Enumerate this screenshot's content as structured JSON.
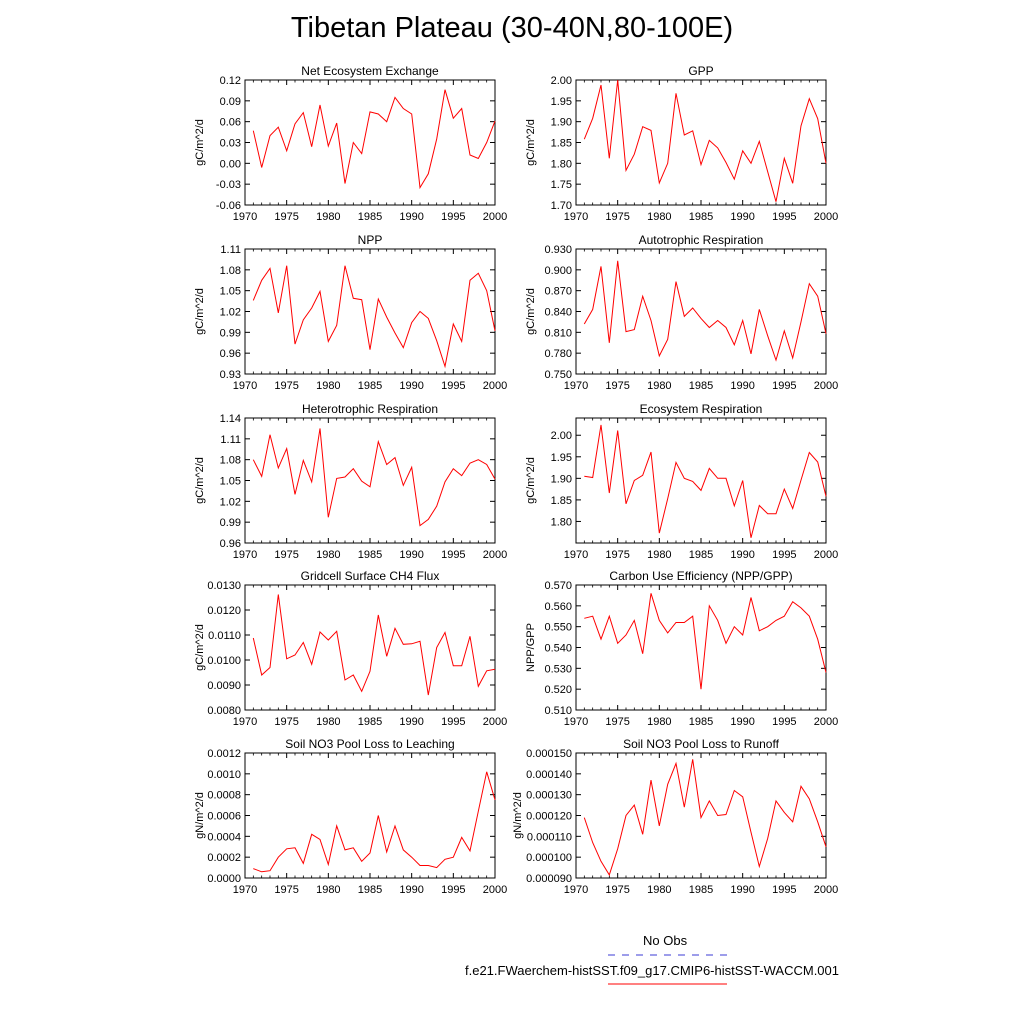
{
  "page_title": "Tibetan Plateau (30-40N,80-100E)",
  "legend": {
    "entries": [
      {
        "label": "No Obs",
        "color": "#3b3bd6",
        "style": "dashed"
      },
      {
        "label": "f.e21.FWaerchem-histSST.f09_g17.CMIP6-histSST-WACCM.001",
        "color": "#ff0000",
        "style": "solid"
      }
    ]
  },
  "chart_data": [
    {
      "type": "line",
      "title": "Net Ecosystem Exchange",
      "xlabel": "",
      "ylabel": "gC/m^2/d",
      "xlim": [
        1970,
        2000
      ],
      "ylim": [
        -0.06,
        0.12
      ],
      "xticks": [
        1970,
        1975,
        1980,
        1985,
        1990,
        1995,
        2000
      ],
      "xtick_labels": [
        "1970",
        "1975",
        "1980",
        "1985",
        "1990",
        "1995",
        "2000"
      ],
      "yticks": [
        -0.06,
        -0.03,
        0,
        0.03,
        0.06,
        0.09,
        0.12
      ],
      "ytick_labels": [
        "-0.06",
        "-0.03",
        "0.00",
        "0.03",
        "0.06",
        "0.09",
        "0.12"
      ],
      "x": [
        1971,
        1972,
        1973,
        1974,
        1975,
        1976,
        1977,
        1978,
        1979,
        1980,
        1981,
        1982,
        1983,
        1984,
        1985,
        1986,
        1987,
        1988,
        1989,
        1990,
        1991,
        1992,
        1993,
        1994,
        1995,
        1996,
        1997,
        1998,
        1999,
        2000
      ],
      "series": [
        {
          "color": "#ff0000",
          "values": [
            0.047,
            -0.006,
            0.04,
            0.052,
            0.018,
            0.057,
            0.073,
            0.024,
            0.084,
            0.025,
            0.058,
            -0.029,
            0.03,
            0.014,
            0.074,
            0.071,
            0.06,
            0.095,
            0.079,
            0.071,
            -0.035,
            -0.015,
            0.035,
            0.106,
            0.065,
            0.079,
            0.012,
            0.007,
            0.03,
            0.061
          ]
        }
      ]
    },
    {
      "type": "line",
      "title": "GPP",
      "xlabel": "",
      "ylabel": "gC/m^2/d",
      "xlim": [
        1970,
        2000
      ],
      "ylim": [
        1.7,
        2.0
      ],
      "xticks": [
        1970,
        1975,
        1980,
        1985,
        1990,
        1995,
        2000
      ],
      "xtick_labels": [
        "1970",
        "1975",
        "1980",
        "1985",
        "1990",
        "1995",
        "2000"
      ],
      "yticks": [
        1.7,
        1.75,
        1.8,
        1.85,
        1.9,
        1.95,
        2.0
      ],
      "ytick_labels": [
        "1.70",
        "1.75",
        "1.80",
        "1.85",
        "1.90",
        "1.95",
        "2.00"
      ],
      "x": [
        1971,
        1972,
        1973,
        1974,
        1975,
        1976,
        1977,
        1978,
        1979,
        1980,
        1981,
        1982,
        1983,
        1984,
        1985,
        1986,
        1987,
        1988,
        1989,
        1990,
        1991,
        1992,
        1993,
        1994,
        1995,
        1996,
        1997,
        1998,
        1999,
        2000
      ],
      "series": [
        {
          "color": "#ff0000",
          "values": [
            1.858,
            1.908,
            1.988,
            1.812,
            2.0,
            1.783,
            1.822,
            1.888,
            1.879,
            1.753,
            1.8,
            1.968,
            1.868,
            1.878,
            1.797,
            1.855,
            1.837,
            1.802,
            1.762,
            1.83,
            1.8,
            1.853,
            1.78,
            1.708,
            1.812,
            1.752,
            1.89,
            1.955,
            1.907,
            1.8
          ]
        }
      ]
    },
    {
      "type": "line",
      "title": "NPP",
      "xlabel": "",
      "ylabel": "gC/m^2/d",
      "xlim": [
        1970,
        2000
      ],
      "ylim": [
        0.93,
        1.11
      ],
      "xticks": [
        1970,
        1975,
        1980,
        1985,
        1990,
        1995,
        2000
      ],
      "xtick_labels": [
        "1970",
        "1975",
        "1980",
        "1985",
        "1990",
        "1995",
        "2000"
      ],
      "yticks": [
        0.93,
        0.96,
        0.99,
        1.02,
        1.05,
        1.08,
        1.11
      ],
      "ytick_labels": [
        "0.93",
        "0.96",
        "0.99",
        "1.02",
        "1.05",
        "1.08",
        "1.11"
      ],
      "x": [
        1971,
        1972,
        1973,
        1974,
        1975,
        1976,
        1977,
        1978,
        1979,
        1980,
        1981,
        1982,
        1983,
        1984,
        1985,
        1986,
        1987,
        1988,
        1989,
        1990,
        1991,
        1992,
        1993,
        1994,
        1995,
        1996,
        1997,
        1998,
        1999,
        2000
      ],
      "series": [
        {
          "color": "#ff0000",
          "values": [
            1.036,
            1.065,
            1.082,
            1.018,
            1.086,
            0.973,
            1.008,
            1.025,
            1.049,
            0.977,
            1.0,
            1.086,
            1.039,
            1.037,
            0.965,
            1.038,
            1.012,
            0.989,
            0.968,
            1.004,
            1.02,
            1.01,
            0.978,
            0.941,
            1.002,
            0.977,
            1.065,
            1.075,
            1.05,
            0.992
          ]
        }
      ]
    },
    {
      "type": "line",
      "title": "Autotrophic Respiration",
      "xlabel": "",
      "ylabel": "gC/m^2/d",
      "xlim": [
        1970,
        2000
      ],
      "ylim": [
        0.75,
        0.93
      ],
      "xticks": [
        1970,
        1975,
        1980,
        1985,
        1990,
        1995,
        2000
      ],
      "xtick_labels": [
        "1970",
        "1975",
        "1980",
        "1985",
        "1990",
        "1995",
        "2000"
      ],
      "yticks": [
        0.75,
        0.78,
        0.81,
        0.84,
        0.87,
        0.9,
        0.93
      ],
      "ytick_labels": [
        "0.750",
        "0.780",
        "0.810",
        "0.840",
        "0.870",
        "0.900",
        "0.930"
      ],
      "x": [
        1971,
        1972,
        1973,
        1974,
        1975,
        1976,
        1977,
        1978,
        1979,
        1980,
        1981,
        1982,
        1983,
        1984,
        1985,
        1986,
        1987,
        1988,
        1989,
        1990,
        1991,
        1992,
        1993,
        1994,
        1995,
        1996,
        1997,
        1998,
        1999,
        2000
      ],
      "series": [
        {
          "color": "#ff0000",
          "values": [
            0.822,
            0.843,
            0.905,
            0.795,
            0.913,
            0.811,
            0.814,
            0.862,
            0.827,
            0.776,
            0.8,
            0.883,
            0.833,
            0.845,
            0.83,
            0.817,
            0.827,
            0.817,
            0.792,
            0.827,
            0.779,
            0.843,
            0.805,
            0.77,
            0.812,
            0.773,
            0.825,
            0.88,
            0.862,
            0.808
          ]
        }
      ]
    },
    {
      "type": "line",
      "title": "Heterotrophic Respiration",
      "xlabel": "",
      "ylabel": "gC/m^2/d",
      "xlim": [
        1970,
        2000
      ],
      "ylim": [
        0.96,
        1.14
      ],
      "xticks": [
        1970,
        1975,
        1980,
        1985,
        1990,
        1995,
        2000
      ],
      "xtick_labels": [
        "1970",
        "1975",
        "1980",
        "1985",
        "1990",
        "1995",
        "2000"
      ],
      "yticks": [
        0.96,
        0.99,
        1.02,
        1.05,
        1.08,
        1.11,
        1.14
      ],
      "ytick_labels": [
        "0.96",
        "0.99",
        "1.02",
        "1.05",
        "1.08",
        "1.11",
        "1.14"
      ],
      "x": [
        1971,
        1972,
        1973,
        1974,
        1975,
        1976,
        1977,
        1978,
        1979,
        1980,
        1981,
        1982,
        1983,
        1984,
        1985,
        1986,
        1987,
        1988,
        1989,
        1990,
        1991,
        1992,
        1993,
        1994,
        1995,
        1996,
        1997,
        1998,
        1999,
        2000
      ],
      "series": [
        {
          "color": "#ff0000",
          "values": [
            1.08,
            1.056,
            1.116,
            1.068,
            1.096,
            1.03,
            1.079,
            1.048,
            1.125,
            0.997,
            1.053,
            1.055,
            1.067,
            1.049,
            1.041,
            1.106,
            1.073,
            1.083,
            1.043,
            1.069,
            0.985,
            0.994,
            1.013,
            1.048,
            1.067,
            1.057,
            1.075,
            1.08,
            1.073,
            1.052
          ]
        }
      ]
    },
    {
      "type": "line",
      "title": "Ecosystem Respiration",
      "xlabel": "",
      "ylabel": "gC/m^2/d",
      "xlim": [
        1970,
        2000
      ],
      "ylim": [
        1.75,
        2.04
      ],
      "xticks": [
        1970,
        1975,
        1980,
        1985,
        1990,
        1995,
        2000
      ],
      "xtick_labels": [
        "1970",
        "1975",
        "1980",
        "1985",
        "1990",
        "1995",
        "2000"
      ],
      "yticks": [
        1.8,
        1.85,
        1.9,
        1.95,
        2.0
      ],
      "ytick_labels": [
        "1.80",
        "1.85",
        "1.90",
        "1.95",
        "2.00"
      ],
      "x": [
        1971,
        1972,
        1973,
        1974,
        1975,
        1976,
        1977,
        1978,
        1979,
        1980,
        1981,
        1982,
        1983,
        1984,
        1985,
        1986,
        1987,
        1988,
        1989,
        1990,
        1991,
        1992,
        1993,
        1994,
        1995,
        1996,
        1997,
        1998,
        1999,
        2000
      ],
      "series": [
        {
          "color": "#ff0000",
          "values": [
            1.905,
            1.902,
            2.024,
            1.866,
            2.011,
            1.841,
            1.895,
            1.907,
            1.961,
            1.773,
            1.853,
            1.937,
            1.9,
            1.893,
            1.872,
            1.923,
            1.9,
            1.9,
            1.836,
            1.895,
            1.762,
            1.837,
            1.818,
            1.818,
            1.875,
            1.83,
            1.896,
            1.96,
            1.938,
            1.858
          ]
        }
      ]
    },
    {
      "type": "line",
      "title": "Gridcell Surface CH4 Flux",
      "xlabel": "",
      "ylabel": "gC/m^2/d",
      "xlim": [
        1970,
        2000
      ],
      "ylim": [
        0.008,
        0.013
      ],
      "xticks": [
        1970,
        1975,
        1980,
        1985,
        1990,
        1995,
        2000
      ],
      "xtick_labels": [
        "1970",
        "1975",
        "1980",
        "1985",
        "1990",
        "1995",
        "2000"
      ],
      "yticks": [
        0.008,
        0.009,
        0.01,
        0.011,
        0.012,
        0.013
      ],
      "ytick_labels": [
        "0.0080",
        "0.0090",
        "0.0100",
        "0.0110",
        "0.0120",
        "0.0130"
      ],
      "x": [
        1971,
        1972,
        1973,
        1974,
        1975,
        1976,
        1977,
        1978,
        1979,
        1980,
        1981,
        1982,
        1983,
        1984,
        1985,
        1986,
        1987,
        1988,
        1989,
        1990,
        1991,
        1992,
        1993,
        1994,
        1995,
        1996,
        1997,
        1998,
        1999,
        2000
      ],
      "series": [
        {
          "color": "#ff0000",
          "values": [
            0.01088,
            0.0094,
            0.0097,
            0.01262,
            0.01005,
            0.0102,
            0.0107,
            0.00983,
            0.01112,
            0.0108,
            0.01115,
            0.0092,
            0.0094,
            0.00875,
            0.00955,
            0.0118,
            0.01015,
            0.01127,
            0.01063,
            0.01065,
            0.01075,
            0.0086,
            0.0105,
            0.0111,
            0.00977,
            0.00977,
            0.01095,
            0.00895,
            0.00957,
            0.00963
          ]
        }
      ]
    },
    {
      "type": "line",
      "title": "Carbon Use Efficiency (NPP/GPP)",
      "xlabel": "",
      "ylabel": "NPP/GPP",
      "xlim": [
        1970,
        2000
      ],
      "ylim": [
        0.51,
        0.57
      ],
      "xticks": [
        1970,
        1975,
        1980,
        1985,
        1990,
        1995,
        2000
      ],
      "xtick_labels": [
        "1970",
        "1975",
        "1980",
        "1985",
        "1990",
        "1995",
        "2000"
      ],
      "yticks": [
        0.51,
        0.52,
        0.53,
        0.54,
        0.55,
        0.56,
        0.57
      ],
      "ytick_labels": [
        "0.510",
        "0.520",
        "0.530",
        "0.540",
        "0.550",
        "0.560",
        "0.570"
      ],
      "x": [
        1971,
        1972,
        1973,
        1974,
        1975,
        1976,
        1977,
        1978,
        1979,
        1980,
        1981,
        1982,
        1983,
        1984,
        1985,
        1986,
        1987,
        1988,
        1989,
        1990,
        1991,
        1992,
        1993,
        1994,
        1995,
        1996,
        1997,
        1998,
        1999,
        2000
      ],
      "series": [
        {
          "color": "#ff0000",
          "values": [
            0.554,
            0.555,
            0.544,
            0.555,
            0.542,
            0.546,
            0.553,
            0.537,
            0.566,
            0.553,
            0.547,
            0.552,
            0.552,
            0.555,
            0.52,
            0.56,
            0.553,
            0.542,
            0.55,
            0.546,
            0.564,
            0.548,
            0.55,
            0.553,
            0.555,
            0.562,
            0.559,
            0.555,
            0.544,
            0.528
          ]
        }
      ]
    },
    {
      "type": "line",
      "title": "Soil NO3 Pool Loss to Leaching",
      "xlabel": "",
      "ylabel": "gN/m^2/d",
      "xlim": [
        1970,
        2000
      ],
      "ylim": [
        0,
        0.0012
      ],
      "xticks": [
        1970,
        1975,
        1980,
        1985,
        1990,
        1995,
        2000
      ],
      "xtick_labels": [
        "1970",
        "1975",
        "1980",
        "1985",
        "1990",
        "1995",
        "2000"
      ],
      "yticks": [
        0,
        0.0002,
        0.0004,
        0.0006,
        0.0008,
        0.001,
        0.0012
      ],
      "ytick_labels": [
        "0.0000",
        "0.0002",
        "0.0004",
        "0.0006",
        "0.0008",
        "0.0010",
        "0.0012"
      ],
      "x": [
        1971,
        1972,
        1973,
        1974,
        1975,
        1976,
        1977,
        1978,
        1979,
        1980,
        1981,
        1982,
        1983,
        1984,
        1985,
        1986,
        1987,
        1988,
        1989,
        1990,
        1991,
        1992,
        1993,
        1994,
        1995,
        1996,
        1997,
        1998,
        1999,
        2000
      ],
      "series": [
        {
          "color": "#ff0000",
          "values": [
            9e-05,
            6e-05,
            7e-05,
            0.0002,
            0.00028,
            0.00029,
            0.00014,
            0.00042,
            0.00037,
            0.00013,
            0.0005,
            0.00027,
            0.00029,
            0.00016,
            0.00024,
            0.0006,
            0.00025,
            0.0005,
            0.00027,
            0.0002,
            0.00012,
            0.00012,
            0.0001,
            0.00018,
            0.0002,
            0.00039,
            0.00026,
            0.00064,
            0.00102,
            0.00075
          ]
        }
      ]
    },
    {
      "type": "line",
      "title": "Soil NO3 Pool Loss to Runoff",
      "xlabel": "",
      "ylabel": "gN/m^2/d",
      "xlim": [
        1970,
        2000
      ],
      "ylim": [
        9e-05,
        0.00015
      ],
      "xticks": [
        1970,
        1975,
        1980,
        1985,
        1990,
        1995,
        2000
      ],
      "xtick_labels": [
        "1970",
        "1975",
        "1980",
        "1985",
        "1990",
        "1995",
        "2000"
      ],
      "yticks": [
        9e-05,
        0.0001,
        0.00011,
        0.00012,
        0.00013,
        0.00014,
        0.00015
      ],
      "ytick_labels": [
        "0.000090",
        "0.000100",
        "0.000110",
        "0.000120",
        "0.000130",
        "0.000140",
        "0.000150"
      ],
      "x": [
        1971,
        1972,
        1973,
        1974,
        1975,
        1976,
        1977,
        1978,
        1979,
        1980,
        1981,
        1982,
        1983,
        1984,
        1985,
        1986,
        1987,
        1988,
        1989,
        1990,
        1991,
        1992,
        1993,
        1994,
        1995,
        1996,
        1997,
        1998,
        1999,
        2000
      ],
      "series": [
        {
          "color": "#ff0000",
          "values": [
            0.000119,
            0.000107,
            9.8e-05,
            9.15e-05,
            0.000104,
            0.00012,
            0.000125,
            0.000111,
            0.000137,
            0.000115,
            0.000135,
            0.000145,
            0.000124,
            0.000147,
            0.000119,
            0.000127,
            0.00012,
            0.0001205,
            0.000132,
            0.000129,
            0.000112,
            9.55e-05,
            0.000109,
            0.000127,
            0.0001215,
            0.000117,
            0.000134,
            0.000128,
            0.000117,
            0.000105
          ]
        }
      ]
    }
  ]
}
